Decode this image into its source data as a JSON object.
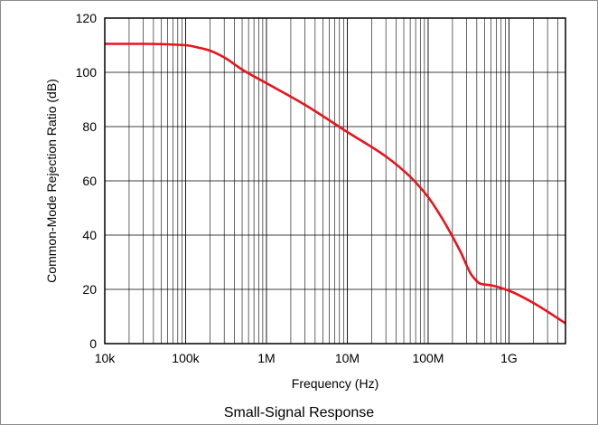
{
  "caption": "Small-Signal Response",
  "chart_data": {
    "type": "line",
    "title": "",
    "xlabel": "Frequency (Hz)",
    "ylabel": "Common-Mode Rejection Ratio (dB)",
    "x_scale": "log",
    "xlim": [
      10000,
      5000000000
    ],
    "ylim": [
      0,
      120
    ],
    "x_ticks": [
      {
        "value": 10000,
        "label": "10k"
      },
      {
        "value": 100000,
        "label": "100k"
      },
      {
        "value": 1000000,
        "label": "1M"
      },
      {
        "value": 10000000,
        "label": "10M"
      },
      {
        "value": 100000000,
        "label": "100M"
      },
      {
        "value": 1000000000,
        "label": "1G"
      }
    ],
    "y_ticks": [
      0,
      20,
      40,
      60,
      80,
      100,
      120
    ],
    "grid": true,
    "line_color": "#e8141c",
    "series": [
      {
        "x": [
          10000,
          30000,
          100000,
          150000,
          200000,
          300000,
          500000,
          1000000,
          3000000,
          10000000,
          30000000,
          60000000,
          100000000,
          150000000,
          250000000,
          350000000,
          450000000,
          600000000,
          1000000000,
          2000000000,
          5000000000
        ],
        "y": [
          110.5,
          110.5,
          110,
          109,
          108,
          105.5,
          101,
          96,
          88,
          78,
          69,
          61.5,
          54,
          46,
          34,
          25,
          22,
          21.5,
          19.5,
          15,
          7.5
        ]
      }
    ]
  }
}
